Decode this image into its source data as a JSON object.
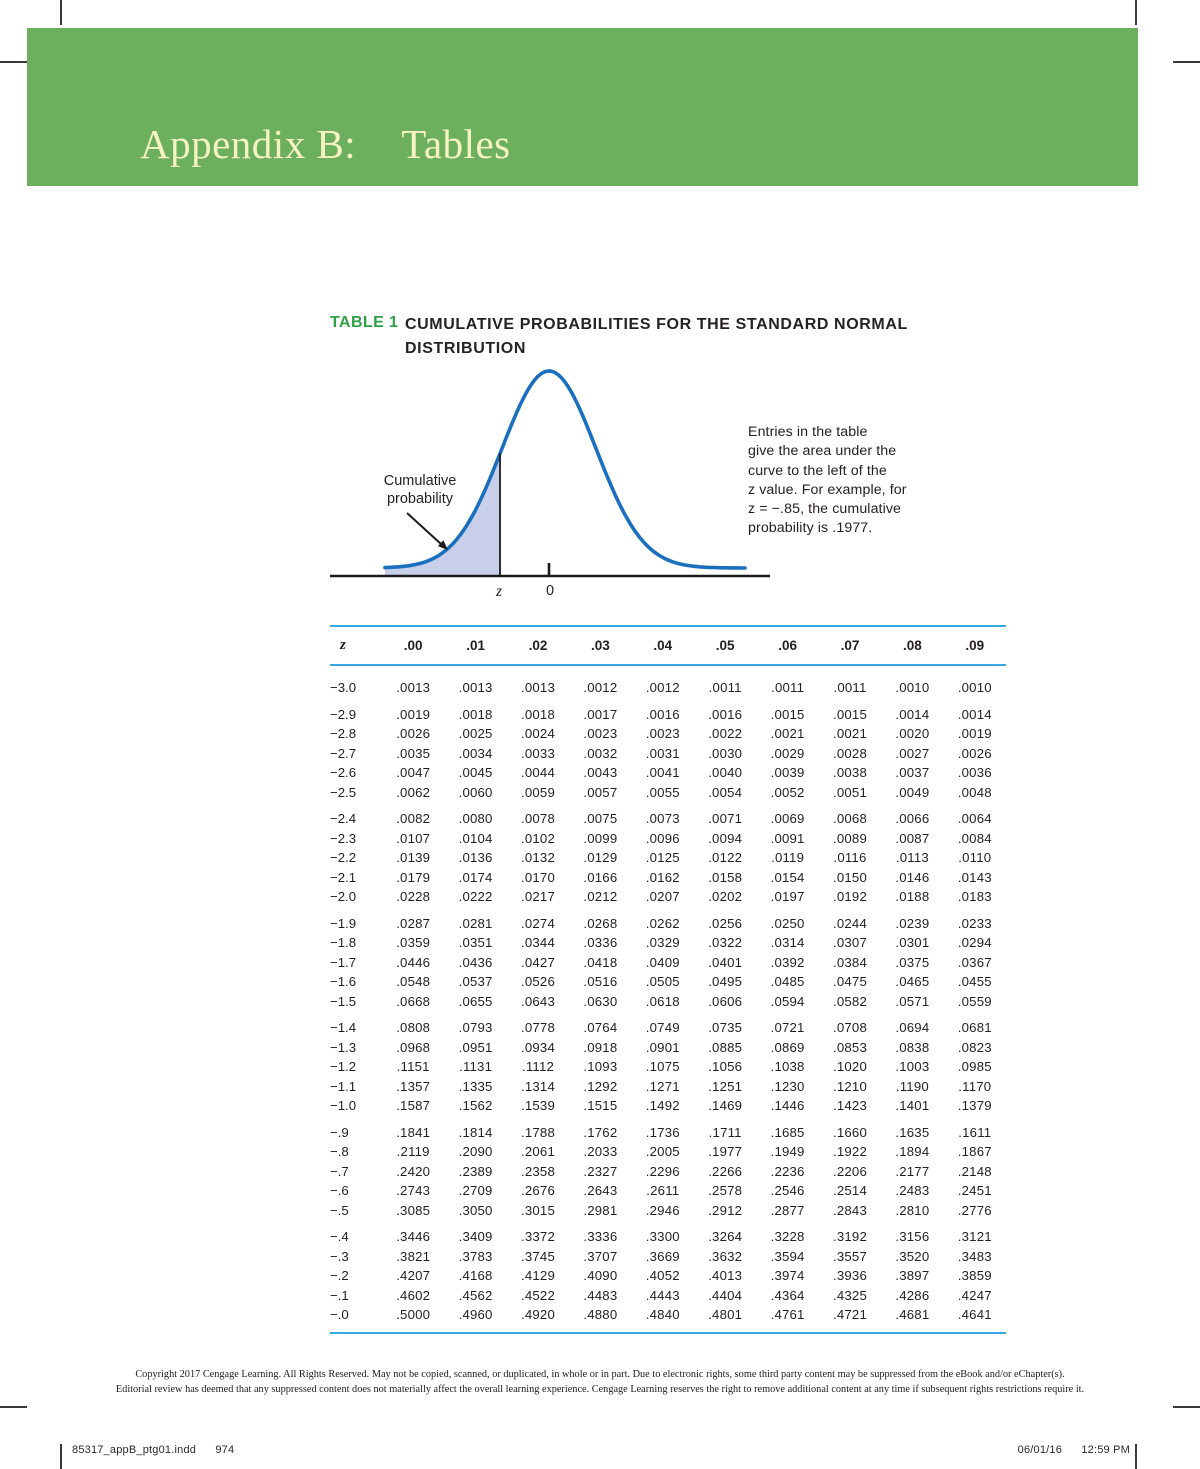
{
  "banner": {
    "prefix": "Appendix B:",
    "title": "Tables"
  },
  "caption": {
    "label": "TABLE 1",
    "title_line1": "CUMULATIVE PROBABILITIES FOR THE STANDARD NORMAL",
    "title_line2": "DISTRIBUTION"
  },
  "figure": {
    "label_line1": "Cumulative",
    "label_line2": "probability",
    "x_label_z": "z",
    "x_label_zero": "0",
    "curve_color": "#1b6fbf",
    "fill_color": "#c7cfea",
    "note_lines": [
      "Entries in the table",
      "give the area under the",
      "curve to the left of the",
      "z value. For example, for",
      "z = −.85, the cumulative",
      "probability is .1977."
    ]
  },
  "table": {
    "columns": [
      "z",
      ".00",
      ".01",
      ".02",
      ".03",
      ".04",
      ".05",
      ".06",
      ".07",
      ".08",
      ".09"
    ],
    "groups": [
      [
        {
          "z": "−3.0",
          "values": [
            ".0013",
            ".0013",
            ".0013",
            ".0012",
            ".0012",
            ".0011",
            ".0011",
            ".0011",
            ".0010",
            ".0010"
          ]
        }
      ],
      [
        {
          "z": "−2.9",
          "values": [
            ".0019",
            ".0018",
            ".0018",
            ".0017",
            ".0016",
            ".0016",
            ".0015",
            ".0015",
            ".0014",
            ".0014"
          ]
        },
        {
          "z": "−2.8",
          "values": [
            ".0026",
            ".0025",
            ".0024",
            ".0023",
            ".0023",
            ".0022",
            ".0021",
            ".0021",
            ".0020",
            ".0019"
          ]
        },
        {
          "z": "−2.7",
          "values": [
            ".0035",
            ".0034",
            ".0033",
            ".0032",
            ".0031",
            ".0030",
            ".0029",
            ".0028",
            ".0027",
            ".0026"
          ]
        },
        {
          "z": "−2.6",
          "values": [
            ".0047",
            ".0045",
            ".0044",
            ".0043",
            ".0041",
            ".0040",
            ".0039",
            ".0038",
            ".0037",
            ".0036"
          ]
        },
        {
          "z": "−2.5",
          "values": [
            ".0062",
            ".0060",
            ".0059",
            ".0057",
            ".0055",
            ".0054",
            ".0052",
            ".0051",
            ".0049",
            ".0048"
          ]
        }
      ],
      [
        {
          "z": "−2.4",
          "values": [
            ".0082",
            ".0080",
            ".0078",
            ".0075",
            ".0073",
            ".0071",
            ".0069",
            ".0068",
            ".0066",
            ".0064"
          ]
        },
        {
          "z": "−2.3",
          "values": [
            ".0107",
            ".0104",
            ".0102",
            ".0099",
            ".0096",
            ".0094",
            ".0091",
            ".0089",
            ".0087",
            ".0084"
          ]
        },
        {
          "z": "−2.2",
          "values": [
            ".0139",
            ".0136",
            ".0132",
            ".0129",
            ".0125",
            ".0122",
            ".0119",
            ".0116",
            ".0113",
            ".0110"
          ]
        },
        {
          "z": "−2.1",
          "values": [
            ".0179",
            ".0174",
            ".0170",
            ".0166",
            ".0162",
            ".0158",
            ".0154",
            ".0150",
            ".0146",
            ".0143"
          ]
        },
        {
          "z": "−2.0",
          "values": [
            ".0228",
            ".0222",
            ".0217",
            ".0212",
            ".0207",
            ".0202",
            ".0197",
            ".0192",
            ".0188",
            ".0183"
          ]
        }
      ],
      [
        {
          "z": "−1.9",
          "values": [
            ".0287",
            ".0281",
            ".0274",
            ".0268",
            ".0262",
            ".0256",
            ".0250",
            ".0244",
            ".0239",
            ".0233"
          ]
        },
        {
          "z": "−1.8",
          "values": [
            ".0359",
            ".0351",
            ".0344",
            ".0336",
            ".0329",
            ".0322",
            ".0314",
            ".0307",
            ".0301",
            ".0294"
          ]
        },
        {
          "z": "−1.7",
          "values": [
            ".0446",
            ".0436",
            ".0427",
            ".0418",
            ".0409",
            ".0401",
            ".0392",
            ".0384",
            ".0375",
            ".0367"
          ]
        },
        {
          "z": "−1.6",
          "values": [
            ".0548",
            ".0537",
            ".0526",
            ".0516",
            ".0505",
            ".0495",
            ".0485",
            ".0475",
            ".0465",
            ".0455"
          ]
        },
        {
          "z": "−1.5",
          "values": [
            ".0668",
            ".0655",
            ".0643",
            ".0630",
            ".0618",
            ".0606",
            ".0594",
            ".0582",
            ".0571",
            ".0559"
          ]
        }
      ],
      [
        {
          "z": "−1.4",
          "values": [
            ".0808",
            ".0793",
            ".0778",
            ".0764",
            ".0749",
            ".0735",
            ".0721",
            ".0708",
            ".0694",
            ".0681"
          ]
        },
        {
          "z": "−1.3",
          "values": [
            ".0968",
            ".0951",
            ".0934",
            ".0918",
            ".0901",
            ".0885",
            ".0869",
            ".0853",
            ".0838",
            ".0823"
          ]
        },
        {
          "z": "−1.2",
          "values": [
            ".1151",
            ".1131",
            ".1112",
            ".1093",
            ".1075",
            ".1056",
            ".1038",
            ".1020",
            ".1003",
            ".0985"
          ]
        },
        {
          "z": "−1.1",
          "values": [
            ".1357",
            ".1335",
            ".1314",
            ".1292",
            ".1271",
            ".1251",
            ".1230",
            ".1210",
            ".1190",
            ".1170"
          ]
        },
        {
          "z": "−1.0",
          "values": [
            ".1587",
            ".1562",
            ".1539",
            ".1515",
            ".1492",
            ".1469",
            ".1446",
            ".1423",
            ".1401",
            ".1379"
          ]
        }
      ],
      [
        {
          "z": "−.9",
          "values": [
            ".1841",
            ".1814",
            ".1788",
            ".1762",
            ".1736",
            ".1711",
            ".1685",
            ".1660",
            ".1635",
            ".1611"
          ]
        },
        {
          "z": "−.8",
          "values": [
            ".2119",
            ".2090",
            ".2061",
            ".2033",
            ".2005",
            ".1977",
            ".1949",
            ".1922",
            ".1894",
            ".1867"
          ]
        },
        {
          "z": "−.7",
          "values": [
            ".2420",
            ".2389",
            ".2358",
            ".2327",
            ".2296",
            ".2266",
            ".2236",
            ".2206",
            ".2177",
            ".2148"
          ]
        },
        {
          "z": "−.6",
          "values": [
            ".2743",
            ".2709",
            ".2676",
            ".2643",
            ".2611",
            ".2578",
            ".2546",
            ".2514",
            ".2483",
            ".2451"
          ]
        },
        {
          "z": "−.5",
          "values": [
            ".3085",
            ".3050",
            ".3015",
            ".2981",
            ".2946",
            ".2912",
            ".2877",
            ".2843",
            ".2810",
            ".2776"
          ]
        }
      ],
      [
        {
          "z": "−.4",
          "values": [
            ".3446",
            ".3409",
            ".3372",
            ".3336",
            ".3300",
            ".3264",
            ".3228",
            ".3192",
            ".3156",
            ".3121"
          ]
        },
        {
          "z": "−.3",
          "values": [
            ".3821",
            ".3783",
            ".3745",
            ".3707",
            ".3669",
            ".3632",
            ".3594",
            ".3557",
            ".3520",
            ".3483"
          ]
        },
        {
          "z": "−.2",
          "values": [
            ".4207",
            ".4168",
            ".4129",
            ".4090",
            ".4052",
            ".4013",
            ".3974",
            ".3936",
            ".3897",
            ".3859"
          ]
        },
        {
          "z": "−.1",
          "values": [
            ".4602",
            ".4562",
            ".4522",
            ".4483",
            ".4443",
            ".4404",
            ".4364",
            ".4325",
            ".4286",
            ".4247"
          ]
        },
        {
          "z": "−.0",
          "values": [
            ".5000",
            ".4960",
            ".4920",
            ".4880",
            ".4840",
            ".4801",
            ".4761",
            ".4721",
            ".4681",
            ".4641"
          ]
        }
      ]
    ]
  },
  "copyright": {
    "line1": "Copyright 2017 Cengage Learning. All Rights Reserved. May not be copied, scanned, or duplicated, in whole or in part. Due to electronic rights, some third party content may be suppressed from the eBook and/or eChapter(s).",
    "line2": "Editorial review has deemed that any suppressed content does not materially affect the overall learning experience. Cengage Learning reserves the right to remove additional content at any time if subsequent rights restrictions require it."
  },
  "footer": {
    "file": "85317_appB_ptg01.indd",
    "page_number": "974",
    "date": "06/01/16",
    "time": "12:59 PM"
  }
}
